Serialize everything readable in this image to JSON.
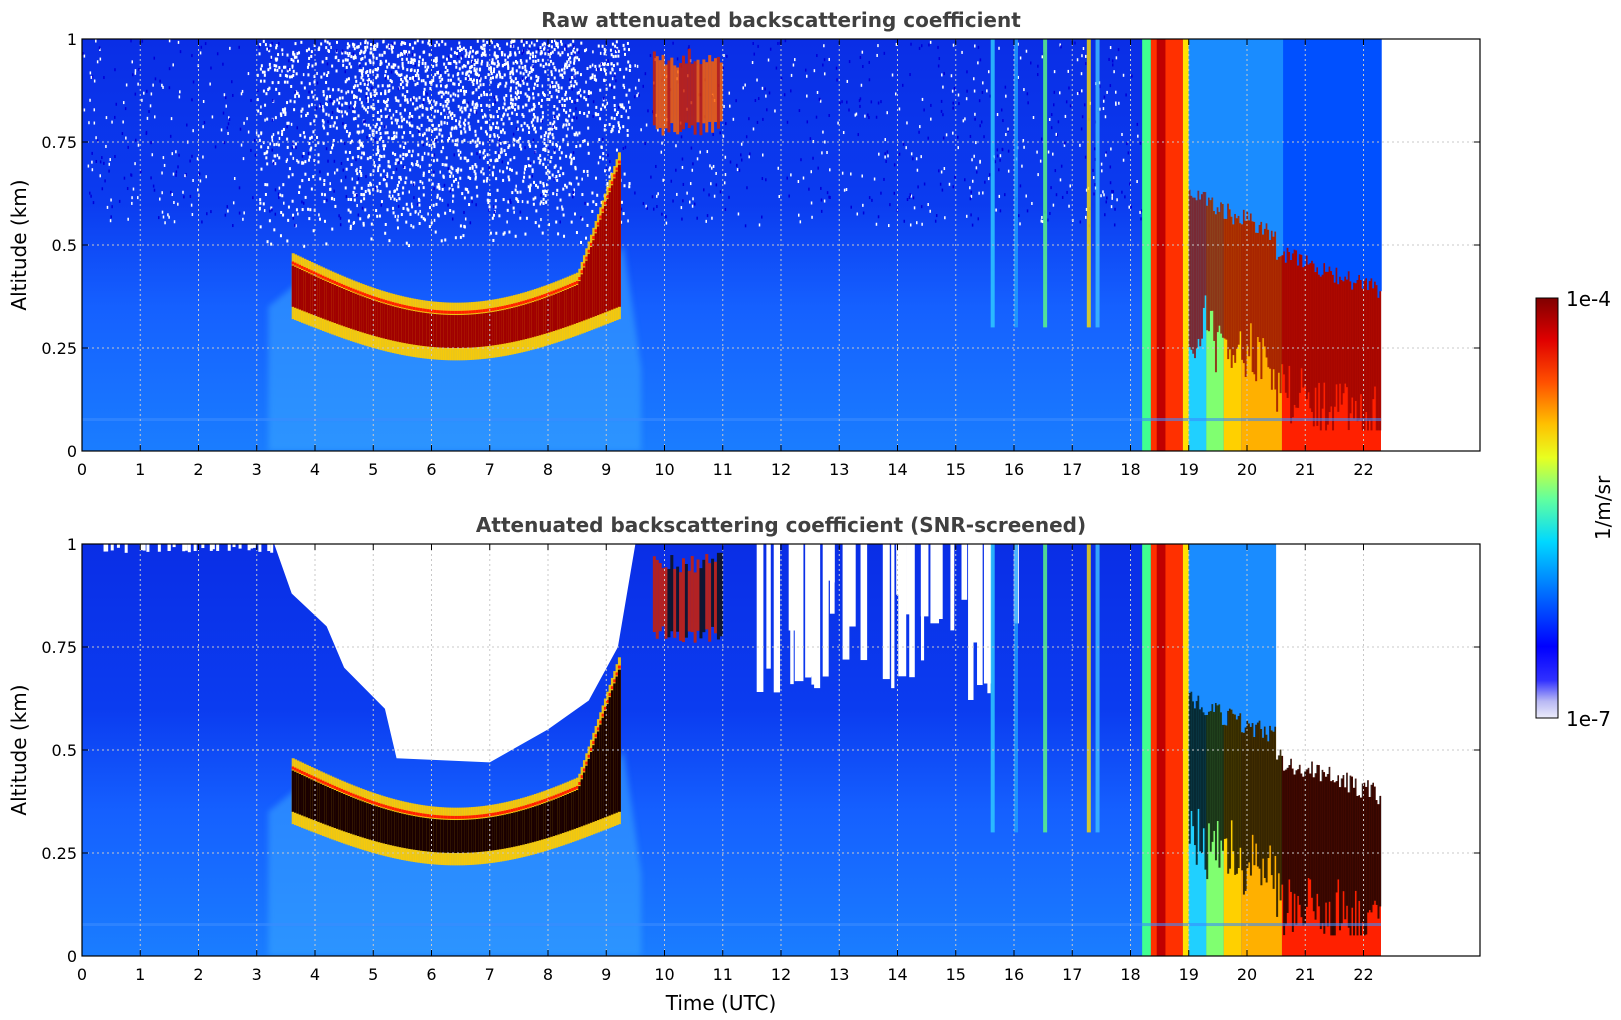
{
  "chart_data": [
    {
      "type": "heatmap",
      "title": "Raw attenuated backscattering coefficient",
      "xlabel": "",
      "ylabel": "Altitude (km)",
      "xlim": [
        0,
        24
      ],
      "ylim": [
        0,
        1
      ],
      "xticks": [
        "0",
        "1",
        "2",
        "3",
        "4",
        "5",
        "6",
        "7",
        "8",
        "9",
        "10",
        "11",
        "12",
        "13",
        "14",
        "15",
        "16",
        "17",
        "18",
        "19",
        "20",
        "21",
        "22"
      ],
      "yticks": [
        "0",
        "0.25",
        "0.5",
        "0.75",
        "1"
      ],
      "data_end_hour": 22.3,
      "grid": true,
      "features": [
        {
          "name": "low cloud layer",
          "x": [
            3.6,
            9.3
          ],
          "y": [
            0.25,
            0.45
          ]
        },
        {
          "name": "elevated layer",
          "x": [
            9.8,
            11.0
          ],
          "y": [
            0.75,
            1.0
          ]
        },
        {
          "name": "precipitation / thick cloud",
          "x": [
            18.2,
            22.3
          ],
          "y": [
            0,
            1
          ]
        }
      ],
      "screened": false
    },
    {
      "type": "heatmap",
      "title": "Attenuated backscattering coefficient (SNR-screened)",
      "xlabel": "Time (UTC)",
      "ylabel": "Altitude (km)",
      "xlim": [
        0,
        24
      ],
      "ylim": [
        0,
        1
      ],
      "xticks": [
        "0",
        "1",
        "2",
        "3",
        "4",
        "5",
        "6",
        "7",
        "8",
        "9",
        "10",
        "11",
        "12",
        "13",
        "14",
        "15",
        "16",
        "17",
        "18",
        "19",
        "20",
        "21",
        "22"
      ],
      "yticks": [
        "0",
        "0.25",
        "0.5",
        "0.75",
        "1"
      ],
      "data_end_hour": 22.3,
      "grid": true,
      "screened": true
    }
  ],
  "colorbar": {
    "label": "1/m/sr",
    "max_label": "1e-4",
    "min_label": "1e-7",
    "colormap": "jet",
    "colors": [
      "#e8e8f8",
      "#0000ff",
      "#0080ff",
      "#00e0ff",
      "#80ff80",
      "#ffff00",
      "#ff8000",
      "#ff0000",
      "#800000"
    ]
  }
}
